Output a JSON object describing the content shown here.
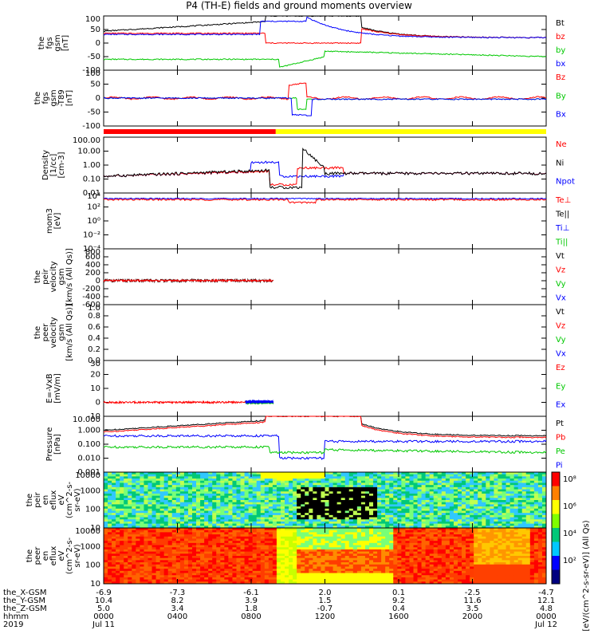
{
  "title": "P4 (TH-E) fields and ground moments overview",
  "colors": {
    "black": "#000000",
    "red": "#ff0000",
    "green": "#00c800",
    "blue": "#0000ff",
    "yellow": "#ffff00"
  },
  "chart_data": {
    "type": "line",
    "x_ticks_hhmm": [
      "0000",
      "0400",
      "0800",
      "1200",
      "1600",
      "2000",
      "0000"
    ],
    "x_ticks_date": [
      "Jul 11",
      "",
      "",
      "",
      "",
      "",
      "Jul 12"
    ],
    "x_tick_rows": [
      {
        "name": "the_X-GSM",
        "values": [
          "-6.9",
          "-7.3",
          "-6.1",
          "2.0",
          "0.1",
          "-2.5",
          "-4.7"
        ]
      },
      {
        "name": "the_Y-GSM",
        "values": [
          "10.4",
          "8.2",
          "3.9",
          "1.5",
          "9.2",
          "11.6",
          "12.1"
        ]
      },
      {
        "name": "the_Z-GSM",
        "values": [
          "5.0",
          "3.4",
          "1.8",
          "-0.7",
          "0.4",
          "3.5",
          "4.8"
        ]
      },
      {
        "name": "hhmm",
        "values": [
          "0000",
          "0400",
          "0800",
          "1200",
          "1600",
          "2000",
          "0000"
        ]
      },
      {
        "name": "2019",
        "values": [
          "Jul 11",
          "",
          "",
          "",
          "",
          "",
          "Jul 12"
        ]
      }
    ],
    "panels": [
      {
        "id": "fgs",
        "ylabel": [
          "the",
          "fgs",
          "gsm",
          "[nT]"
        ],
        "yticks": [
          "100",
          "50",
          "0",
          "-50",
          "-100"
        ],
        "ylim": [
          -100,
          100
        ],
        "legend": [
          {
            "text": "Bt",
            "color": "#000000"
          },
          {
            "text": "bz",
            "color": "#ff0000"
          },
          {
            "text": "by",
            "color": "#00c800"
          },
          {
            "text": "bx",
            "color": "#0000ff"
          }
        ]
      },
      {
        "id": "fgs_dt",
        "ylabel": [
          "the",
          "fgs",
          "gsm",
          "-T89",
          "[nT]"
        ],
        "yticks": [
          "100",
          "50",
          "0",
          "-50",
          "-100"
        ],
        "ylim": [
          -120,
          120
        ],
        "legend": [
          {
            "text": "Bz",
            "color": "#ff0000"
          },
          {
            "text": "By",
            "color": "#00c800"
          },
          {
            "text": "Bx",
            "color": "#0000ff"
          }
        ]
      },
      {
        "id": "density",
        "ylabel": [
          "Density",
          "[1/cc]",
          "[cm-3]"
        ],
        "yticks": [
          "100.00",
          "10.00",
          "1.00",
          "0.10",
          "0.01"
        ],
        "ylim": [
          0.01,
          100
        ],
        "log": true,
        "legend": [
          {
            "text": "Ne",
            "color": "#ff0000"
          },
          {
            "text": "Ni",
            "color": "#000000"
          },
          {
            "text": "Npot",
            "color": "#0000ff"
          }
        ]
      },
      {
        "id": "temp",
        "ylabel": [
          "mom3",
          "[eV]"
        ],
        "yticks": [
          "10⁴",
          "10²",
          "10⁰",
          "10⁻²",
          "10⁻⁴"
        ],
        "ylim": [
          0.0001,
          10000
        ],
        "log": true,
        "legend": [
          {
            "text": "Te⊥",
            "color": "#ff0000"
          },
          {
            "text": "Te||",
            "color": "#000000"
          },
          {
            "text": "Ti⊥",
            "color": "#0000ff"
          },
          {
            "text": "Ti||",
            "color": "#00c800"
          }
        ]
      },
      {
        "id": "vi",
        "ylabel": [
          "the",
          "peir",
          "velocity",
          "gsm",
          "[km/s (All Qs)]"
        ],
        "yticks": [
          "800",
          "600",
          "400",
          "200",
          "0",
          "-200",
          "-400",
          "-600"
        ],
        "ylim": [
          -600,
          800
        ],
        "legend": [
          {
            "text": "Vt",
            "color": "#000000"
          },
          {
            "text": "Vz",
            "color": "#ff0000"
          },
          {
            "text": "Vy",
            "color": "#00c800"
          },
          {
            "text": "Vx",
            "color": "#0000ff"
          }
        ]
      },
      {
        "id": "ve",
        "ylabel": [
          "the",
          "peer",
          "velocity",
          "gsm",
          "[km/s (All Qs)]"
        ],
        "yticks": [
          "1.0",
          "0.8",
          "0.6",
          "0.4",
          "0.2",
          "0.0"
        ],
        "ylim": [
          0,
          1
        ],
        "legend": [
          {
            "text": "Vt",
            "color": "#000000"
          },
          {
            "text": "Vz",
            "color": "#ff0000"
          },
          {
            "text": "Vy",
            "color": "#00c800"
          },
          {
            "text": "Vx",
            "color": "#0000ff"
          }
        ]
      },
      {
        "id": "efield",
        "ylabel": [
          "E=-VxB",
          "[mV/m]"
        ],
        "yticks": [
          "30",
          "20",
          "10",
          "0",
          "-10"
        ],
        "ylim": [
          -10,
          30
        ],
        "legend": [
          {
            "text": "Ez",
            "color": "#ff0000"
          },
          {
            "text": "Ey",
            "color": "#00c800"
          },
          {
            "text": "Ex",
            "color": "#0000ff"
          }
        ]
      },
      {
        "id": "pressure",
        "ylabel": [
          "Pressure",
          "[nPa]"
        ],
        "yticks": [
          "10.000",
          "1.000",
          "0.100",
          "0.010",
          "0.001"
        ],
        "ylim": [
          0.001,
          10
        ],
        "log": true,
        "legend": [
          {
            "text": "Pt",
            "color": "#000000"
          },
          {
            "text": "Pb",
            "color": "#ff0000"
          },
          {
            "text": "Pe",
            "color": "#00c800"
          },
          {
            "text": "Pi",
            "color": "#0000ff"
          }
        ]
      },
      {
        "id": "ispec",
        "ylabel": [
          "the",
          "peir",
          "en",
          "eflux",
          "eV",
          "(cm^2-s-",
          "sr-eV)"
        ],
        "yticks": [
          "10000",
          "1000",
          "100",
          "10"
        ],
        "ylim": [
          5,
          25000
        ],
        "log": true,
        "type": "heatmap"
      },
      {
        "id": "espec",
        "ylabel": [
          "the",
          "peer",
          "en",
          "eflux",
          "eV",
          "(cm^2-s-",
          "sr-eV)"
        ],
        "yticks": [
          "10000",
          "1000",
          "100",
          "10"
        ],
        "ylim": [
          5,
          25000
        ],
        "log": true,
        "type": "heatmap"
      }
    ],
    "colorbar": {
      "ticks": [
        "10⁸",
        "10⁶",
        "10⁴",
        "10²"
      ],
      "label": "[eV/(cm^2-s-sr-eV)] (All Qs)"
    },
    "region_bar": [
      {
        "from": "0000",
        "to": "0920",
        "color": "#ff0000"
      },
      {
        "from": "0920",
        "to": "2400",
        "color": "#ffff00"
      }
    ]
  }
}
